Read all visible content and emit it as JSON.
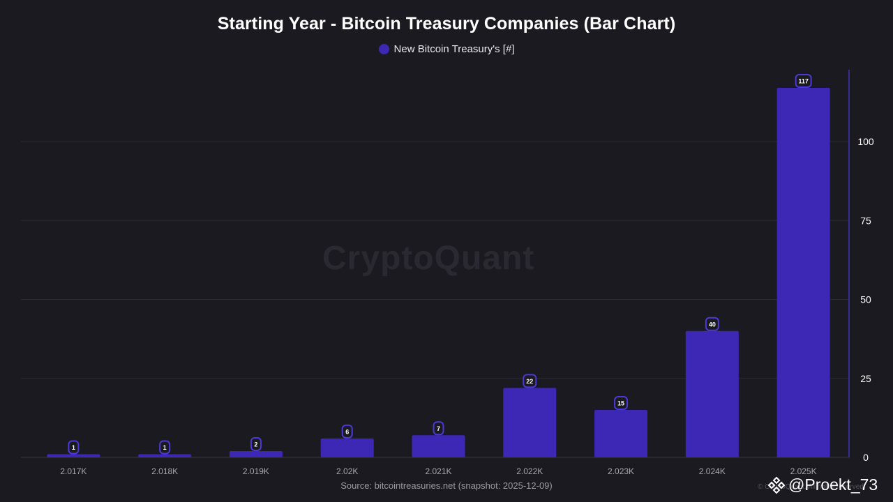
{
  "title": "Starting Year - Bitcoin Treasury Companies (Bar Chart)",
  "legend": {
    "label": "New Bitcoin Treasury's [#]"
  },
  "watermark": "CryptoQuant",
  "source": "Source: bitcointreasuries.net (snapshot: 2025-12-09)",
  "copyright": "© CryptoQuant. All rights reserved.",
  "handle": "@Proekt_73",
  "colors": {
    "bar": "#3c28b4",
    "label_border": "#4a3bd6",
    "label_bg": "#1b1a20",
    "grid": "#2b2a33",
    "axis_line": "#4a3bd6",
    "tick_text": "#ffffff",
    "x_tick_text": "#a7a6ae"
  },
  "chart_data": {
    "type": "bar",
    "title": "Starting Year - Bitcoin Treasury Companies (Bar Chart)",
    "xlabel": "",
    "ylabel": "",
    "categories": [
      "2.017K",
      "2.018K",
      "2.019K",
      "2.02K",
      "2.021K",
      "2.022K",
      "2.023K",
      "2.024K",
      "2.025K"
    ],
    "series": [
      {
        "name": "New Bitcoin Treasury's [#]",
        "values": [
          1,
          1,
          2,
          6,
          7,
          22,
          15,
          40,
          117
        ]
      }
    ],
    "ylim": [
      0,
      125
    ],
    "yticks": [
      0,
      25,
      50,
      75,
      100
    ],
    "ytick_labels": [
      "0",
      "25",
      "50",
      "75",
      "100"
    ],
    "y_axis_side": "right",
    "grid": true,
    "legend_position": "top-center",
    "data_labels": [
      "1",
      "1",
      "2",
      "6",
      "7",
      "22",
      "15",
      "40",
      "117"
    ]
  }
}
